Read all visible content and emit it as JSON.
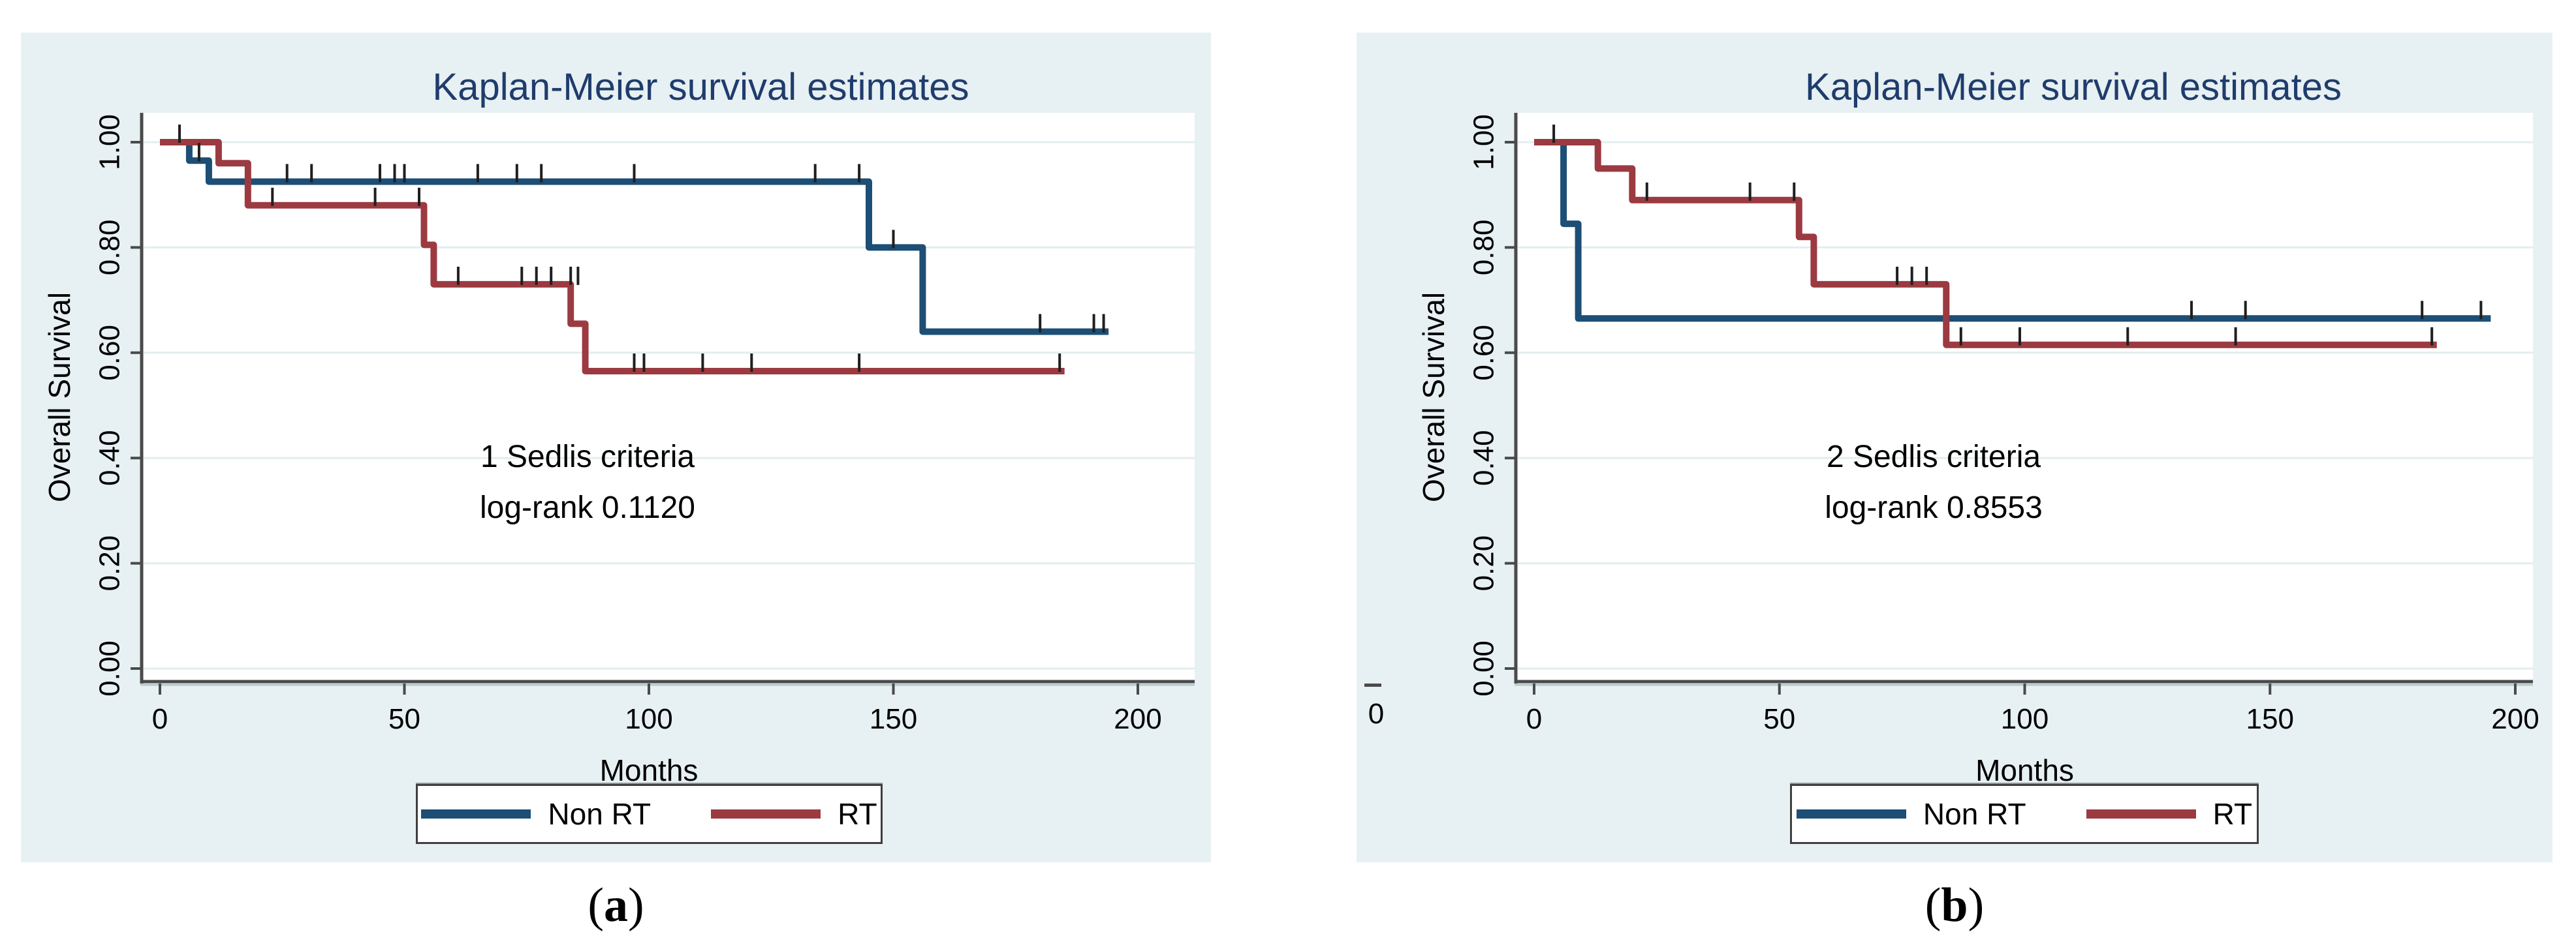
{
  "colors": {
    "panel_bg": "#e7f0f2",
    "plot_bg": "#ffffff",
    "grid": "#e2eef0",
    "axis": "#4a4a4a",
    "axis_shadow": "#b9c8ca",
    "title": "#1f3c6d",
    "censor": "#1f1f1f",
    "legend_border": "#3f3f3f",
    "non_rt": "#1d4e75",
    "rt": "#9c3a41"
  },
  "chart_data": [
    {
      "type": "line",
      "subtype": "kaplan-meier-step",
      "panel": "a",
      "title": "Kaplan-Meier survival estimates",
      "xlabel": "Months",
      "ylabel": "Overall Survival",
      "xlim": [
        0,
        200
      ],
      "ylim": [
        0.0,
        1.0
      ],
      "x_ticks": [
        0,
        50,
        100,
        150,
        200
      ],
      "y_tick_labels": [
        "1.00",
        "0.80",
        "0.60",
        "0.40",
        "0.20",
        "0.00"
      ],
      "grid": true,
      "legend_position": "bottom",
      "annotation": {
        "line1": "1 Sedlis criteria",
        "line2": "log-rank 0.1120"
      },
      "caption": {
        "open": "(",
        "letter": "a",
        "close": ")"
      },
      "series": [
        {
          "name": "Non RT",
          "color": "#1d4e75",
          "steps": [
            [
              0,
              1.0
            ],
            [
              6,
              1.0
            ],
            [
              6,
              0.965
            ],
            [
              10,
              0.965
            ],
            [
              10,
              0.925
            ],
            [
              145,
              0.925
            ],
            [
              145,
              0.8
            ],
            [
              156,
              0.8
            ],
            [
              156,
              0.64
            ],
            [
              194,
              0.64
            ]
          ],
          "censor_marks": [
            [
              4,
              1.0
            ],
            [
              8,
              0.965
            ],
            [
              26,
              0.925
            ],
            [
              31,
              0.925
            ],
            [
              45,
              0.925
            ],
            [
              48,
              0.925
            ],
            [
              50,
              0.925
            ],
            [
              65,
              0.925
            ],
            [
              73,
              0.925
            ],
            [
              78,
              0.925
            ],
            [
              97,
              0.925
            ],
            [
              134,
              0.925
            ],
            [
              143,
              0.925
            ],
            [
              150,
              0.8
            ],
            [
              180,
              0.64
            ],
            [
              191,
              0.64
            ],
            [
              193,
              0.64
            ]
          ]
        },
        {
          "name": "RT",
          "color": "#9c3a41",
          "steps": [
            [
              0,
              1.0
            ],
            [
              12,
              1.0
            ],
            [
              12,
              0.96
            ],
            [
              18,
              0.96
            ],
            [
              18,
              0.88
            ],
            [
              54,
              0.88
            ],
            [
              54,
              0.805
            ],
            [
              56,
              0.805
            ],
            [
              56,
              0.73
            ],
            [
              84,
              0.73
            ],
            [
              84,
              0.655
            ],
            [
              87,
              0.655
            ],
            [
              87,
              0.565
            ],
            [
              185,
              0.565
            ]
          ],
          "censor_marks": [
            [
              23,
              0.88
            ],
            [
              44,
              0.88
            ],
            [
              53,
              0.88
            ],
            [
              61,
              0.73
            ],
            [
              74,
              0.73
            ],
            [
              77,
              0.73
            ],
            [
              80,
              0.73
            ],
            [
              84,
              0.73
            ],
            [
              85.5,
              0.73
            ],
            [
              97,
              0.565
            ],
            [
              99,
              0.565
            ],
            [
              111,
              0.565
            ],
            [
              121,
              0.565
            ],
            [
              143,
              0.565
            ],
            [
              184,
              0.565
            ]
          ]
        }
      ]
    },
    {
      "type": "line",
      "subtype": "kaplan-meier-step",
      "panel": "b",
      "title": "Kaplan-Meier survival estimates",
      "xlabel": "Months",
      "ylabel": "Overall Survival",
      "xlim": [
        0,
        200
      ],
      "ylim": [
        0.0,
        1.0
      ],
      "x_ticks": [
        0,
        50,
        100,
        150,
        200
      ],
      "y_tick_labels": [
        "1.00",
        "0.80",
        "0.60",
        "0.40",
        "0.20",
        "0.00"
      ],
      "grid": true,
      "legend_position": "bottom",
      "annotation": {
        "line1": "2 Sedlis criteria",
        "line2": "log-rank 0.8553"
      },
      "caption": {
        "open": "(",
        "letter": "b",
        "close": ")"
      },
      "crop_artifact_label": "0",
      "series": [
        {
          "name": "Non RT",
          "color": "#1d4e75",
          "steps": [
            [
              0,
              1.0
            ],
            [
              6,
              1.0
            ],
            [
              6,
              0.845
            ],
            [
              9,
              0.845
            ],
            [
              9,
              0.665
            ],
            [
              195,
              0.665
            ]
          ],
          "censor_marks": [
            [
              4,
              1.0
            ],
            [
              134,
              0.665
            ],
            [
              145,
              0.665
            ],
            [
              181,
              0.665
            ],
            [
              193,
              0.665
            ]
          ]
        },
        {
          "name": "RT",
          "color": "#9c3a41",
          "steps": [
            [
              0,
              1.0
            ],
            [
              13,
              1.0
            ],
            [
              13,
              0.95
            ],
            [
              20,
              0.95
            ],
            [
              20,
              0.89
            ],
            [
              54,
              0.89
            ],
            [
              54,
              0.82
            ],
            [
              57,
              0.82
            ],
            [
              57,
              0.73
            ],
            [
              84,
              0.73
            ],
            [
              84,
              0.615
            ],
            [
              184,
              0.615
            ]
          ],
          "censor_marks": [
            [
              23,
              0.89
            ],
            [
              44,
              0.89
            ],
            [
              53,
              0.89
            ],
            [
              74,
              0.73
            ],
            [
              77,
              0.73
            ],
            [
              80,
              0.73
            ],
            [
              87,
              0.615
            ],
            [
              99,
              0.615
            ],
            [
              121,
              0.615
            ],
            [
              143,
              0.615
            ],
            [
              183,
              0.615
            ]
          ]
        }
      ]
    }
  ]
}
